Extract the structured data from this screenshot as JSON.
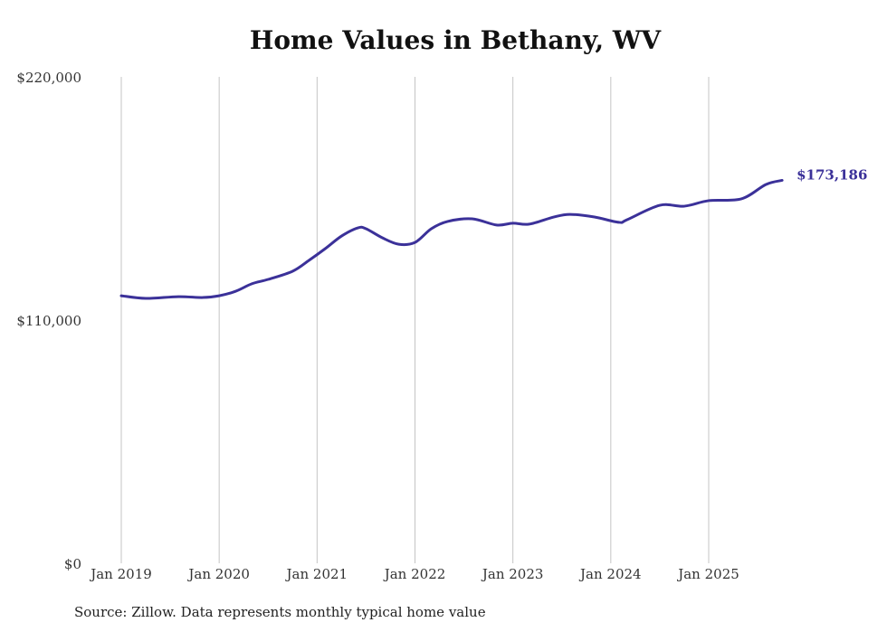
{
  "chart_data": {
    "type": "line",
    "title": "Home Values in Bethany, WV",
    "xlabel": "",
    "ylabel": "",
    "ylim": [
      0,
      220000
    ],
    "y_ticks": [
      {
        "value": 0,
        "label": "$0"
      },
      {
        "value": 110000,
        "label": "$110,000"
      },
      {
        "value": 220000,
        "label": "$220,000"
      }
    ],
    "x_ticks": [
      {
        "month": 0,
        "label": "Jan 2019"
      },
      {
        "month": 12,
        "label": "Jan 2020"
      },
      {
        "month": 24,
        "label": "Jan 2021"
      },
      {
        "month": 36,
        "label": "Jan 2022"
      },
      {
        "month": 48,
        "label": "Jan 2023"
      },
      {
        "month": 60,
        "label": "Jan 2024"
      },
      {
        "month": 72,
        "label": "Jan 2025"
      }
    ],
    "grid": "vertical",
    "series": [
      {
        "name": "Typical home value",
        "color": "#3b3199",
        "points": [
          [
            "2019-01",
            121000
          ],
          [
            "2019-04",
            119800
          ],
          [
            "2019-08",
            120600
          ],
          [
            "2019-11",
            120200
          ],
          [
            "2020-01",
            121000
          ],
          [
            "2020-03",
            123000
          ],
          [
            "2020-05",
            126400
          ],
          [
            "2020-07",
            128400
          ],
          [
            "2020-10",
            132100
          ],
          [
            "2020-12",
            137000
          ],
          [
            "2021-02",
            142300
          ],
          [
            "2021-04",
            148000
          ],
          [
            "2021-06",
            151700
          ],
          [
            "2021-07",
            151300
          ],
          [
            "2021-09",
            147200
          ],
          [
            "2021-11",
            144300
          ],
          [
            "2022-01",
            145100
          ],
          [
            "2022-03",
            151300
          ],
          [
            "2022-05",
            154600
          ],
          [
            "2022-08",
            155800
          ],
          [
            "2022-11",
            153000
          ],
          [
            "2023-01",
            153800
          ],
          [
            "2023-03",
            153400
          ],
          [
            "2023-06",
            156600
          ],
          [
            "2023-08",
            157800
          ],
          [
            "2023-11",
            156600
          ],
          [
            "2024-02",
            154200
          ],
          [
            "2024-03",
            155400
          ],
          [
            "2024-07",
            161900
          ],
          [
            "2024-10",
            161500
          ],
          [
            "2025-01",
            164000
          ],
          [
            "2025-05",
            164800
          ],
          [
            "2025-08",
            171300
          ],
          [
            "2025-10",
            173186
          ]
        ]
      }
    ],
    "end_label": "$173,186",
    "source": "Source: Zillow. Data represents monthly typical home value"
  }
}
